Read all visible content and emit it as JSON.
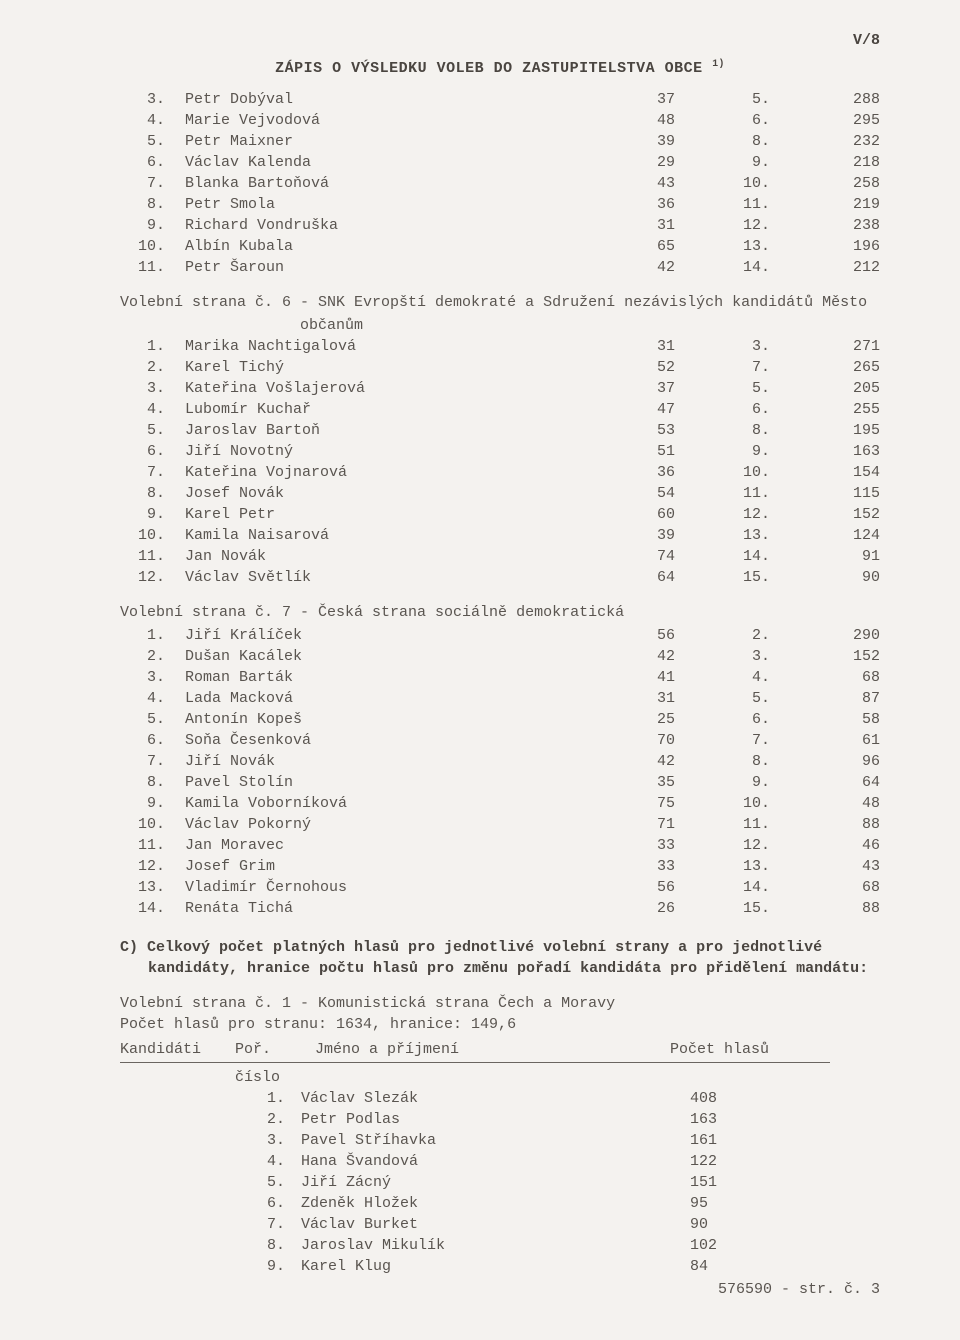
{
  "page_number": "V/8",
  "doc_title": "ZÁPIS O VÝSLEDKU VOLEB DO ZASTUPITELSTVA OBCE ",
  "doc_title_sup": "1)",
  "block1": {
    "rows": [
      {
        "i": "3.",
        "name": "Petr Dobýval",
        "a": "37",
        "b": "5",
        "c": "288"
      },
      {
        "i": "4.",
        "name": "Marie Vejvodová",
        "a": "48",
        "b": "6",
        "c": "295"
      },
      {
        "i": "5.",
        "name": "Petr Maixner",
        "a": "39",
        "b": "8",
        "c": "232"
      },
      {
        "i": "6.",
        "name": "Václav Kalenda",
        "a": "29",
        "b": "9",
        "c": "218"
      },
      {
        "i": "7.",
        "name": "Blanka Bartoňová",
        "a": "43",
        "b": "10",
        "c": "258"
      },
      {
        "i": "8.",
        "name": "Petr Smola",
        "a": "36",
        "b": "11",
        "c": "219"
      },
      {
        "i": "9.",
        "name": "Richard Vondruška",
        "a": "31",
        "b": "12",
        "c": "238"
      },
      {
        "i": "10.",
        "name": "Albín Kubala",
        "a": "65",
        "b": "13",
        "c": "196"
      },
      {
        "i": "11.",
        "name": "Petr Šaroun",
        "a": "42",
        "b": "14",
        "c": "212"
      }
    ]
  },
  "party6_header": "Volební strana č. 6 - SNK Evropští demokraté a Sdružení nezávislých kandidátů Město",
  "party6_sub": "občanům",
  "block6": {
    "rows": [
      {
        "i": "1.",
        "name": "Marika Nachtigalová",
        "a": "31",
        "b": "3",
        "c": "271"
      },
      {
        "i": "2.",
        "name": "Karel Tichý",
        "a": "52",
        "b": "7",
        "c": "265"
      },
      {
        "i": "3.",
        "name": "Kateřina Vošlajerová",
        "a": "37",
        "b": "5",
        "c": "205"
      },
      {
        "i": "4.",
        "name": "Lubomír Kuchař",
        "a": "47",
        "b": "6",
        "c": "255"
      },
      {
        "i": "5.",
        "name": "Jaroslav Bartoň",
        "a": "53",
        "b": "8",
        "c": "195"
      },
      {
        "i": "6.",
        "name": "Jiří Novotný",
        "a": "51",
        "b": "9",
        "c": "163"
      },
      {
        "i": "7.",
        "name": "Kateřina Vojnarová",
        "a": "36",
        "b": "10",
        "c": "154"
      },
      {
        "i": "8.",
        "name": "Josef Novák",
        "a": "54",
        "b": "11",
        "c": "115"
      },
      {
        "i": "9.",
        "name": "Karel Petr",
        "a": "60",
        "b": "12",
        "c": "152"
      },
      {
        "i": "10.",
        "name": "Kamila Naisarová",
        "a": "39",
        "b": "13",
        "c": "124"
      },
      {
        "i": "11.",
        "name": "Jan Novák",
        "a": "74",
        "b": "14",
        "c": "91"
      },
      {
        "i": "12.",
        "name": "Václav Světlík",
        "a": "64",
        "b": "15",
        "c": "90"
      }
    ]
  },
  "party7_header": "Volební strana č. 7 - Česká strana sociálně demokratická",
  "block7": {
    "rows": [
      {
        "i": "1.",
        "name": "Jiří Králíček",
        "a": "56",
        "b": "2",
        "c": "290"
      },
      {
        "i": "2.",
        "name": "Dušan Kacálek",
        "a": "42",
        "b": "3",
        "c": "152"
      },
      {
        "i": "3.",
        "name": "Roman Barták",
        "a": "41",
        "b": "4",
        "c": "68"
      },
      {
        "i": "4.",
        "name": "Lada Macková",
        "a": "31",
        "b": "5",
        "c": "87"
      },
      {
        "i": "5.",
        "name": "Antonín Kopeš",
        "a": "25",
        "b": "6",
        "c": "58"
      },
      {
        "i": "6.",
        "name": "Soňa Česenková",
        "a": "70",
        "b": "7",
        "c": "61"
      },
      {
        "i": "7.",
        "name": "Jiří Novák",
        "a": "42",
        "b": "8",
        "c": "96"
      },
      {
        "i": "8.",
        "name": "Pavel Stolín",
        "a": "35",
        "b": "9",
        "c": "64"
      },
      {
        "i": "9.",
        "name": "Kamila Voborníková",
        "a": "75",
        "b": "10",
        "c": "48"
      },
      {
        "i": "10.",
        "name": "Václav Pokorný",
        "a": "71",
        "b": "11",
        "c": "88"
      },
      {
        "i": "11.",
        "name": "Jan Moravec",
        "a": "33",
        "b": "12",
        "c": "46"
      },
      {
        "i": "12.",
        "name": "Josef Grim",
        "a": "33",
        "b": "13",
        "c": "43"
      },
      {
        "i": "13.",
        "name": "Vladimír Černohous",
        "a": "56",
        "b": "14",
        "c": "68"
      },
      {
        "i": "14.",
        "name": "Renáta Tichá",
        "a": "26",
        "b": "15",
        "c": "88"
      }
    ]
  },
  "section_c_line1": "C) Celkový počet platných hlasů pro jednotlivé volební strany a pro jednotlivé",
  "section_c_line2": "kandidáty, hranice počtu hlasů pro změnu pořadí kandidáta pro přidělení mandátu:",
  "party1_header": "Volební strana č. 1 - Komunistická strana Čech a Moravy",
  "votes_party_line": "Počet hlasů pro stranu:   1634, hranice:       149,6",
  "tbl_header": {
    "kandidati": "Kandidáti",
    "pora": "Poř.",
    "jmeno": "Jméno a příjmení",
    "pocet": "Počet hlasů",
    "cislo": "číslo"
  },
  "votes": {
    "rows": [
      {
        "i": "1.",
        "name": "Václav Slezák",
        "c": "408"
      },
      {
        "i": "2.",
        "name": "Petr Podlas",
        "c": "163"
      },
      {
        "i": "3.",
        "name": "Pavel Stříhavka",
        "c": "161"
      },
      {
        "i": "4.",
        "name": "Hana Švandová",
        "c": "122"
      },
      {
        "i": "5.",
        "name": "Jiří Zácný",
        "c": "151"
      },
      {
        "i": "6.",
        "name": "Zdeněk Hložek",
        "c": "95"
      },
      {
        "i": "7.",
        "name": "Václav Burket",
        "c": "90"
      },
      {
        "i": "8.",
        "name": "Jaroslav Mikulík",
        "c": "102"
      },
      {
        "i": "9.",
        "name": "Karel Klug",
        "c": "84"
      }
    ]
  },
  "footer": "576590 - str. č. 3"
}
